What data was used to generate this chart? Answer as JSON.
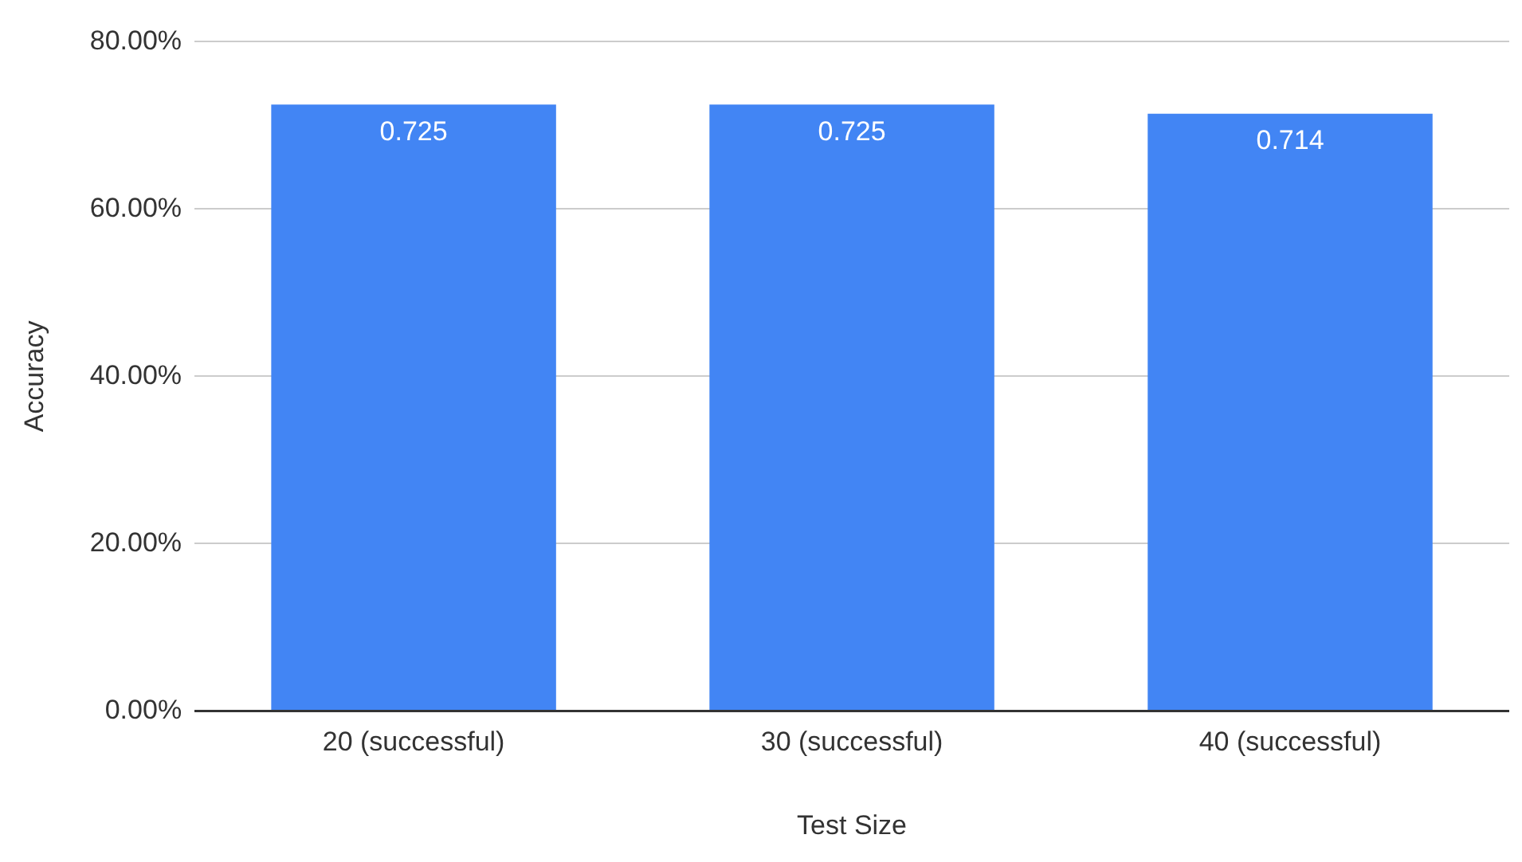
{
  "chart_data": {
    "type": "bar",
    "xlabel": "Test Size",
    "ylabel": "Accuracy",
    "categories": [
      "20 (successful)",
      "30 (successful)",
      "40 (successful)"
    ],
    "values": [
      0.725,
      0.725,
      0.714
    ],
    "color": "#4285f4",
    "ylim": [
      0,
      0.8
    ],
    "yticks": [
      {
        "value": 0,
        "label": "0.00%"
      },
      {
        "value": 0.2,
        "label": "20.00%"
      },
      {
        "value": 0.4,
        "label": "40.00%"
      },
      {
        "value": 0.6,
        "label": "60.00%"
      },
      {
        "value": 0.8,
        "label": "80.00%"
      }
    ],
    "grid": "y",
    "data_labels": true
  }
}
